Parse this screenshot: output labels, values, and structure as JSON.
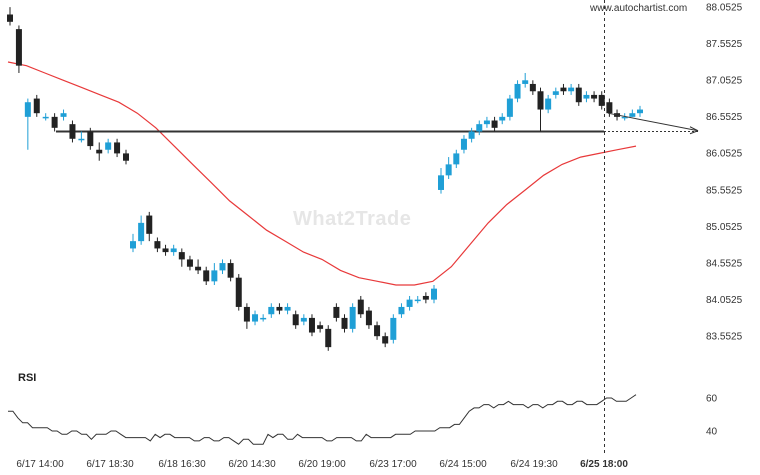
{
  "site": "www.autochartist.com",
  "watermark": "What2Trade",
  "chart_data": {
    "type": "candlestick",
    "ylim": [
      83.0,
      88.3
    ],
    "y_ticks": [
      "88.0525",
      "87.5525",
      "87.0525",
      "86.5525",
      "86.0525",
      "85.5525",
      "85.0525",
      "84.5525",
      "84.0525",
      "83.5525"
    ],
    "x_tick_labels": [
      "6/17 14:00",
      "6/17 18:30",
      "6/18 16:30",
      "6/20 14:30",
      "6/20 19:00",
      "6/23 17:00",
      "6/24 15:00",
      "6/24 19:30",
      "6/25 18:00"
    ],
    "support_level": 86.35,
    "forecast_end": 86.36,
    "colors": {
      "up": "#1f9fd6",
      "down": "#222222",
      "ma": "#e8393a",
      "level": "#333333",
      "rsi": "#333333"
    },
    "candles": [
      [
        87.95,
        87.85,
        88.05,
        87.8
      ],
      [
        87.75,
        87.25,
        87.8,
        87.15
      ],
      [
        86.55,
        86.75,
        86.8,
        86.1
      ],
      [
        86.8,
        86.6,
        86.85,
        86.55
      ],
      [
        86.55,
        86.55,
        86.6,
        86.5
      ],
      [
        86.55,
        86.4,
        86.6,
        86.35
      ],
      [
        86.55,
        86.6,
        86.65,
        86.5
      ],
      [
        86.45,
        86.25,
        86.5,
        86.2
      ],
      [
        86.25,
        86.25,
        86.35,
        86.2
      ],
      [
        86.35,
        86.15,
        86.4,
        86.1
      ],
      [
        86.1,
        86.05,
        86.2,
        85.95
      ],
      [
        86.1,
        86.2,
        86.25,
        86.05
      ],
      [
        86.2,
        86.05,
        86.25,
        86.0
      ],
      [
        86.05,
        85.95,
        86.1,
        85.9
      ],
      [
        84.75,
        84.85,
        84.95,
        84.7
      ],
      [
        84.85,
        85.1,
        85.2,
        84.8
      ],
      [
        85.2,
        84.95,
        85.25,
        84.85
      ],
      [
        84.85,
        84.75,
        84.9,
        84.7
      ],
      [
        84.75,
        84.7,
        84.8,
        84.65
      ],
      [
        84.7,
        84.75,
        84.8,
        84.65
      ],
      [
        84.7,
        84.6,
        84.75,
        84.5
      ],
      [
        84.6,
        84.5,
        84.65,
        84.45
      ],
      [
        84.5,
        84.45,
        84.6,
        84.4
      ],
      [
        84.45,
        84.3,
        84.5,
        84.25
      ],
      [
        84.3,
        84.45,
        84.55,
        84.25
      ],
      [
        84.45,
        84.55,
        84.6,
        84.4
      ],
      [
        84.55,
        84.35,
        84.6,
        84.3
      ],
      [
        84.35,
        83.95,
        84.4,
        83.9
      ],
      [
        83.95,
        83.75,
        84.0,
        83.65
      ],
      [
        83.75,
        83.85,
        83.9,
        83.7
      ],
      [
        83.8,
        83.8,
        83.85,
        83.75
      ],
      [
        83.85,
        83.95,
        84.0,
        83.8
      ],
      [
        83.95,
        83.9,
        84.0,
        83.85
      ],
      [
        83.9,
        83.95,
        84.0,
        83.85
      ],
      [
        83.85,
        83.7,
        83.9,
        83.65
      ],
      [
        83.75,
        83.8,
        83.85,
        83.7
      ],
      [
        83.8,
        83.6,
        83.85,
        83.55
      ],
      [
        83.7,
        83.65,
        83.75,
        83.6
      ],
      [
        83.65,
        83.4,
        83.7,
        83.35
      ],
      [
        83.95,
        83.8,
        84.0,
        83.75
      ],
      [
        83.8,
        83.65,
        83.85,
        83.6
      ],
      [
        83.65,
        83.95,
        84.0,
        83.6
      ],
      [
        84.05,
        83.85,
        84.1,
        83.8
      ],
      [
        83.9,
        83.7,
        83.95,
        83.65
      ],
      [
        83.7,
        83.55,
        83.75,
        83.5
      ],
      [
        83.55,
        83.45,
        83.6,
        83.4
      ],
      [
        83.5,
        83.8,
        83.85,
        83.45
      ],
      [
        83.85,
        83.95,
        84.0,
        83.8
      ],
      [
        83.95,
        84.05,
        84.1,
        83.9
      ],
      [
        84.05,
        84.05,
        84.1,
        84.0
      ],
      [
        84.1,
        84.05,
        84.15,
        84.0
      ],
      [
        84.05,
        84.2,
        84.25,
        84.0
      ],
      [
        85.55,
        85.75,
        85.85,
        85.5
      ],
      [
        85.75,
        85.9,
        86.0,
        85.7
      ],
      [
        85.9,
        86.05,
        86.1,
        85.85
      ],
      [
        86.1,
        86.25,
        86.3,
        86.05
      ],
      [
        86.25,
        86.35,
        86.4,
        86.2
      ],
      [
        86.35,
        86.45,
        86.5,
        86.3
      ],
      [
        86.45,
        86.5,
        86.55,
        86.4
      ],
      [
        86.5,
        86.4,
        86.55,
        86.35
      ],
      [
        86.5,
        86.55,
        86.6,
        86.45
      ],
      [
        86.55,
        86.8,
        86.85,
        86.5
      ],
      [
        86.8,
        87.0,
        87.05,
        86.75
      ],
      [
        87.0,
        87.05,
        87.15,
        86.95
      ],
      [
        87.0,
        86.9,
        87.05,
        86.85
      ],
      [
        86.9,
        86.65,
        86.95,
        86.35
      ],
      [
        86.65,
        86.8,
        86.85,
        86.6
      ],
      [
        86.85,
        86.9,
        86.95,
        86.8
      ],
      [
        86.95,
        86.9,
        87.0,
        86.85
      ],
      [
        86.9,
        86.95,
        87.0,
        86.85
      ],
      [
        86.95,
        86.75,
        87.0,
        86.7
      ],
      [
        86.8,
        86.85,
        86.9,
        86.75
      ],
      [
        86.85,
        86.8,
        86.9,
        86.75
      ],
      [
        86.85,
        86.7,
        86.9,
        86.65
      ],
      [
        86.75,
        86.6,
        86.8,
        86.55
      ],
      [
        86.6,
        86.55,
        86.65,
        86.5
      ],
      [
        86.55,
        86.55,
        86.6,
        86.5
      ],
      [
        86.55,
        86.6,
        86.65,
        86.55
      ],
      [
        86.6,
        86.65,
        86.7,
        86.55
      ]
    ],
    "ma": [
      87.3,
      87.25,
      87.15,
      87.05,
      86.95,
      86.85,
      86.75,
      86.6,
      86.4,
      86.15,
      85.9,
      85.65,
      85.4,
      85.2,
      85.0,
      84.85,
      84.7,
      84.6,
      84.45,
      84.35,
      84.3,
      84.25,
      84.25,
      84.3,
      84.5,
      84.8,
      85.1,
      85.35,
      85.55,
      85.75,
      85.9,
      86.0,
      86.05,
      86.1,
      86.15
    ],
    "rsi_ylim": [
      28,
      70
    ],
    "rsi_ticks": [
      "60",
      "40"
    ],
    "rsi": [
      52,
      52,
      48,
      45,
      45,
      42,
      42,
      42,
      42,
      40,
      40,
      38,
      38,
      40,
      40,
      38,
      38,
      35,
      38,
      38,
      38,
      40,
      40,
      38,
      36,
      36,
      36,
      36,
      36,
      34,
      38,
      36,
      38,
      38,
      36,
      36,
      36,
      36,
      34,
      34,
      36,
      36,
      34,
      34,
      36,
      36,
      34,
      32,
      35,
      35,
      32,
      32,
      32,
      38,
      36,
      38,
      38,
      35,
      35,
      38,
      36,
      36,
      36,
      36,
      36,
      34,
      34,
      36,
      36,
      36,
      36,
      34,
      34,
      38,
      36,
      36,
      36,
      36,
      36,
      38,
      38,
      38,
      38,
      40,
      40,
      40,
      40,
      40,
      42,
      42,
      42,
      44,
      44,
      48,
      52,
      54,
      54,
      56,
      56,
      54,
      56,
      56,
      58,
      56,
      56,
      56,
      54,
      56,
      56,
      54,
      56,
      56,
      58,
      58,
      56,
      56,
      58,
      58,
      56,
      56,
      56,
      58,
      60,
      60,
      58,
      58,
      58,
      60,
      62
    ]
  }
}
